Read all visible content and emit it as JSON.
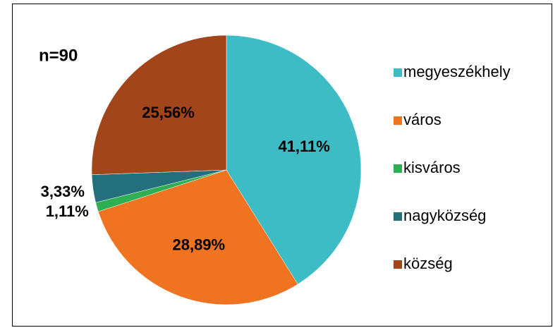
{
  "chart_data": {
    "type": "pie",
    "title": "n=90",
    "categories": [
      "megyeszékhely",
      "város",
      "kisváros",
      "nagyközség",
      "község"
    ],
    "values": [
      41.11,
      28.89,
      1.11,
      3.33,
      25.56
    ],
    "value_labels": [
      "41,11%",
      "28,89%",
      "1,11%",
      "3,33%",
      "25,56%"
    ],
    "colors": [
      "#3dbcc6",
      "#f07322",
      "#2eaf52",
      "#23707c",
      "#a3451b"
    ],
    "legend": "right"
  }
}
